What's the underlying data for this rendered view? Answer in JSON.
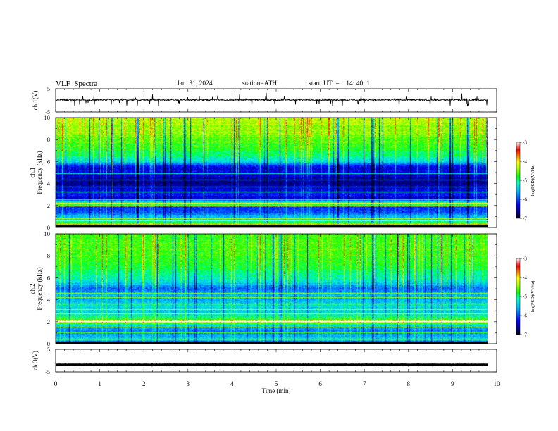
{
  "header": {
    "title": "VLF  Spectra",
    "date": "Jan. 31, 2024",
    "station": "station=ATH",
    "start": "start  UT  =    14: 40: 1"
  },
  "chart_data": [
    {
      "type": "line",
      "panel": "waveform-ch1",
      "ylabel": "ch.1(V)",
      "ylim": [
        -5,
        5
      ],
      "yticks": [
        "5",
        "-5"
      ],
      "xlim": [
        0,
        10
      ],
      "x_end": 9.8,
      "baseline": 0.2,
      "noise": 0.6,
      "spike_amp": 1.8,
      "color": "#000000"
    },
    {
      "type": "heatmap",
      "panel": "spectrogram-ch1",
      "ylabel": "ch.1\nFrequency  (kHz)",
      "ylim": [
        0,
        10
      ],
      "yticks": [
        "0",
        "2",
        "4",
        "6",
        "8",
        "10"
      ],
      "xlim": [
        0,
        10
      ],
      "x_end": 9.8,
      "profile_khz": [
        0,
        0.3,
        0.6,
        1.0,
        1.4,
        1.8,
        2.0,
        2.3,
        2.6,
        3.0,
        3.5,
        4.0,
        4.5,
        5.0,
        5.5,
        6.0,
        6.5,
        7.0,
        8.0,
        9.0,
        10.0
      ],
      "profile_level": [
        -6.9,
        -4.6,
        -5.3,
        -5.6,
        -6.0,
        -6.2,
        -4.8,
        -5.3,
        -6.5,
        -6.2,
        -6.4,
        -6.7,
        -6.6,
        -6.3,
        -6.4,
        -5.4,
        -5.0,
        -4.8,
        -4.6,
        -4.4,
        -4.3
      ],
      "lines_khz": [
        0.25,
        0.55,
        0.8,
        1.95,
        2.1,
        2.2,
        2.5,
        3.25,
        3.7,
        4.35,
        4.9
      ],
      "colorbar": {
        "label": "log(PSD)(V²/Hz)",
        "ticks": [
          "-3",
          "-4",
          "-5",
          "-6",
          "-7"
        ],
        "range": [
          -7,
          -3
        ]
      }
    },
    {
      "type": "heatmap",
      "panel": "spectrogram-ch2",
      "ylabel": "ch.2\nFrequency  (kHz)",
      "ylim": [
        0,
        10
      ],
      "yticks": [
        "0",
        "2",
        "4",
        "6",
        "8",
        "10"
      ],
      "xlim": [
        0,
        10
      ],
      "x_end": 9.8,
      "profile_khz": [
        0,
        0.3,
        0.7,
        1.2,
        1.7,
        2.0,
        2.2,
        2.6,
        3.0,
        3.5,
        4.0,
        4.5,
        5.0,
        5.5,
        6.0,
        6.5,
        7.0,
        8.0,
        9.0,
        10.0
      ],
      "profile_level": [
        -6.9,
        -5.3,
        -5.6,
        -5.8,
        -5.3,
        -3.9,
        -4.9,
        -5.2,
        -5.4,
        -5.3,
        -5.6,
        -5.5,
        -5.9,
        -5.4,
        -5.1,
        -5.0,
        -4.8,
        -4.7,
        -4.6,
        -4.7
      ],
      "lines_khz": [
        0.4,
        1.0,
        1.5,
        2.0,
        2.05,
        2.3,
        2.7,
        3.1,
        3.6,
        4.2,
        4.6
      ],
      "colorbar": {
        "label": "log(PSD)(V²/Hz)",
        "ticks": [
          "-3",
          "-4",
          "-5",
          "-6",
          "-7"
        ],
        "range": [
          -7,
          -3
        ]
      }
    },
    {
      "type": "line",
      "panel": "waveform-ch3",
      "ylabel": "ch.3(V)",
      "ylim": [
        -5,
        5
      ],
      "yticks": [
        "5",
        "-5"
      ],
      "xlim": [
        0,
        10
      ],
      "x_end": 9.8,
      "baseline": -1.9,
      "noise": 0.1,
      "spike_amp": 0,
      "color": "#000000"
    }
  ],
  "xaxis": {
    "label": "Time  (min)",
    "ticks": [
      "0",
      "1",
      "2",
      "3",
      "4",
      "5",
      "6",
      "7",
      "8",
      "9",
      "10"
    ],
    "range": [
      0,
      10
    ]
  }
}
